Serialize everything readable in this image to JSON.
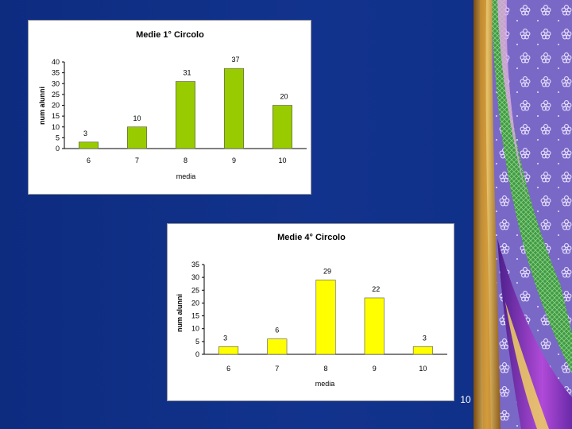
{
  "slide": {
    "number": "10"
  },
  "colors": {
    "background": "#0f2f86",
    "bar1": "#99cc00",
    "bar2": "#ffff00"
  },
  "chart_data": [
    {
      "type": "bar",
      "title": "Medie 1° Circolo",
      "xlabel": "media",
      "ylabel": "num alunni",
      "categories": [
        "6",
        "7",
        "8",
        "9",
        "10"
      ],
      "values": [
        3,
        10,
        31,
        37,
        20
      ],
      "ylim": [
        0,
        40
      ],
      "yticks": [
        0,
        5,
        10,
        15,
        20,
        25,
        30,
        35,
        40
      ],
      "grid": false,
      "legend": "none",
      "color": "#99cc00"
    },
    {
      "type": "bar",
      "title": "Medie 4° Circolo",
      "xlabel": "media",
      "ylabel": "num alunni",
      "categories": [
        "6",
        "7",
        "8",
        "9",
        "10"
      ],
      "values": [
        3,
        6,
        29,
        22,
        3
      ],
      "ylim": [
        0,
        35
      ],
      "yticks": [
        0,
        5,
        10,
        15,
        20,
        25,
        30,
        35
      ],
      "grid": false,
      "legend": "none",
      "color": "#ffff00"
    }
  ]
}
